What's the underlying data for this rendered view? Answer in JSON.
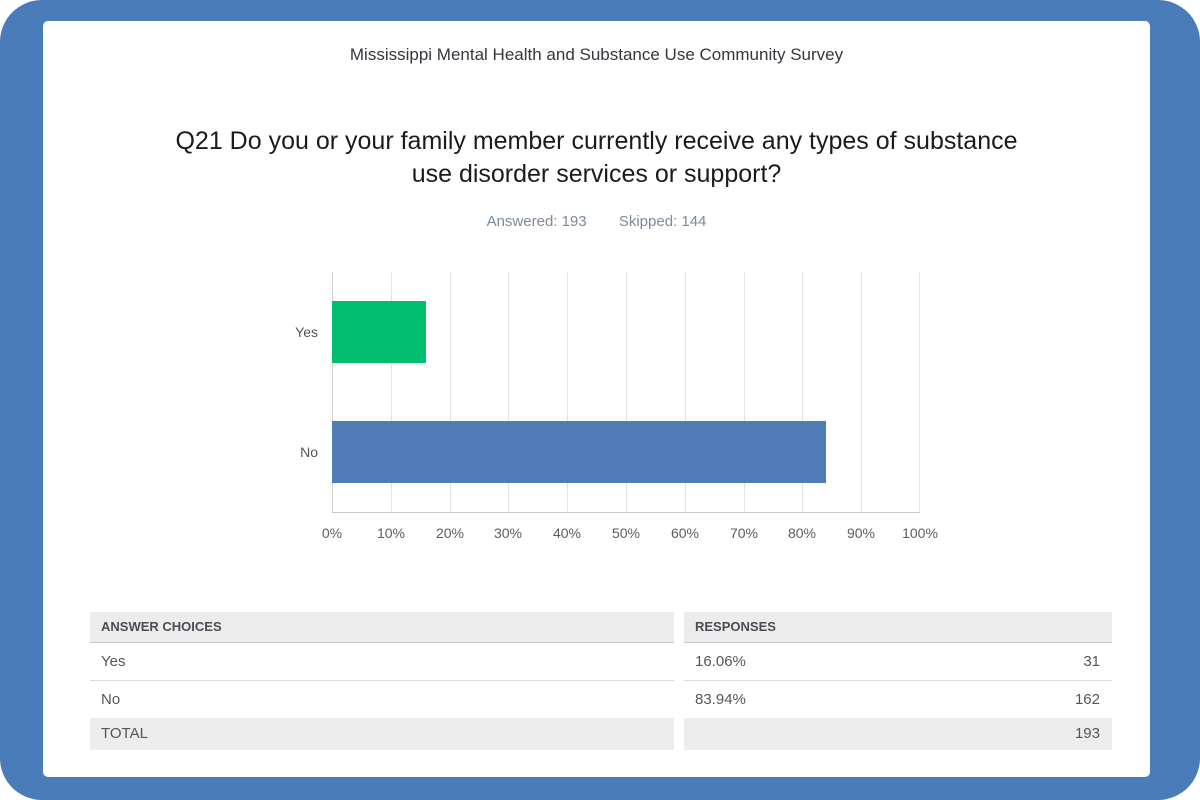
{
  "colors": {
    "frame_blue": "#4A7CB9",
    "bar_green": "#00BE6E",
    "bar_blue": "#507CB8",
    "table_header_bg": "#ececec",
    "total_row_bg": "#ececec"
  },
  "header": {
    "survey_title": "Mississippi Mental Health and Substance Use Community Survey"
  },
  "question": {
    "title": "Q21 Do you or your family member currently receive any types of substance use disorder services or support?",
    "answered_text": "Answered: 193",
    "skipped_text": "Skipped: 144"
  },
  "chart_data": {
    "type": "bar",
    "orientation": "horizontal",
    "title": "",
    "categories": [
      "Yes",
      "No"
    ],
    "values": [
      16.06,
      83.94
    ],
    "bar_colors": [
      "#00BE6E",
      "#507CB8"
    ],
    "x_ticks": [
      "0%",
      "10%",
      "20%",
      "30%",
      "40%",
      "50%",
      "60%",
      "70%",
      "80%",
      "90%",
      "100%"
    ],
    "xlim": [
      0,
      100
    ],
    "grid": true,
    "legend_position": "none"
  },
  "table": {
    "columns": [
      "ANSWER CHOICES",
      "RESPONSES"
    ],
    "rows": [
      {
        "choice": "Yes",
        "percent": "16.06%",
        "count": "31"
      },
      {
        "choice": "No",
        "percent": "83.94%",
        "count": "162"
      }
    ],
    "total": {
      "label": "TOTAL",
      "count": "193"
    }
  }
}
